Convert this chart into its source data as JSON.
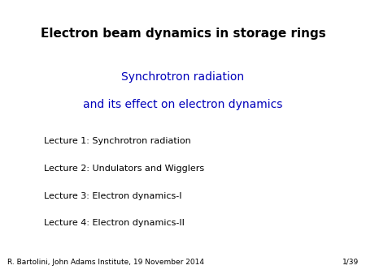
{
  "title": "Electron beam dynamics in storage rings",
  "subtitle_line1": "Synchrotron radiation",
  "subtitle_line2": "and its effect on electron dynamics",
  "subtitle_color": "#0000BB",
  "lectures": [
    "Lecture 1: Synchrotron radiation",
    "Lecture 2: Undulators and Wigglers",
    "Lecture 3: Electron dynamics-I",
    "Lecture 4: Electron dynamics-II"
  ],
  "footer_left": "R. Bartolini, John Adams Institute, 19 November 2014",
  "footer_right": "1/39",
  "background_color": "#ffffff",
  "text_color": "#000000",
  "title_fontsize": 11,
  "subtitle_fontsize": 10,
  "lecture_fontsize": 8,
  "footer_fontsize": 6.5
}
